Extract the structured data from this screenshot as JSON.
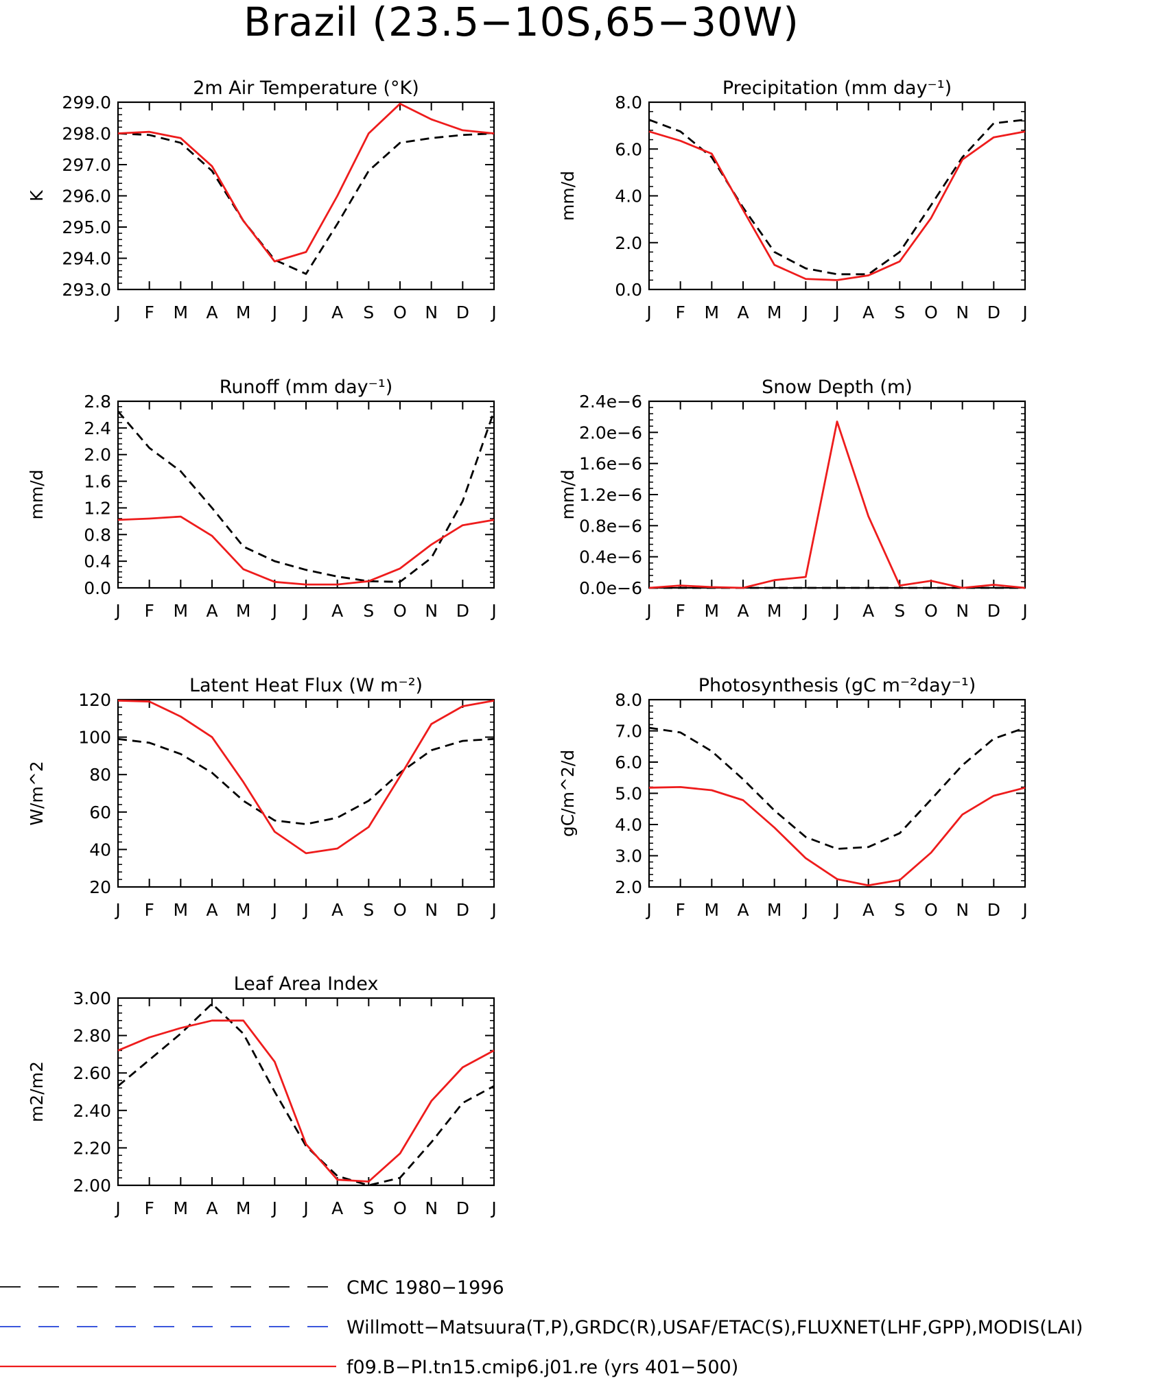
{
  "title": "Brazil (23.5−10S,65−30W)",
  "colors": {
    "obs": "#000000",
    "obs2": "#1f3fd8",
    "model": "#ee1c1c",
    "axis": "#000000"
  },
  "months": [
    "J",
    "F",
    "M",
    "A",
    "M",
    "J",
    "J",
    "A",
    "S",
    "O",
    "N",
    "D",
    "J"
  ],
  "chart_data": [
    {
      "type": "line",
      "title": "2m Air Temperature (°K)",
      "ylabel": "K",
      "ylim": [
        293.0,
        299.0
      ],
      "yticks": [
        293.0,
        294.0,
        295.0,
        296.0,
        297.0,
        298.0,
        299.0
      ],
      "ytick_labels": [
        "293.0",
        "294.0",
        "295.0",
        "296.0",
        "297.0",
        "298.0",
        "299.0"
      ],
      "series": [
        {
          "name": "CMC 1980−1996",
          "values": [
            298.0,
            297.95,
            297.7,
            296.8,
            295.2,
            293.95,
            293.5,
            295.1,
            296.8,
            297.7,
            297.85,
            297.95,
            298.0
          ]
        },
        {
          "name": "f09.B−PI.tn15.cmip6.j01.re (yrs 401−500)",
          "values": [
            298.0,
            298.05,
            297.85,
            296.95,
            295.2,
            293.9,
            294.2,
            296.0,
            298.0,
            298.95,
            298.45,
            298.1,
            298.0
          ]
        }
      ]
    },
    {
      "type": "line",
      "title": "Precipitation (mm day⁻¹)",
      "ylabel": "mm/d",
      "ylim": [
        0.0,
        8.0
      ],
      "yticks": [
        0,
        2,
        4,
        6,
        8
      ],
      "ytick_labels": [
        "0.0",
        "2.0",
        "4.0",
        "6.0",
        "8.0"
      ],
      "series": [
        {
          "name": "CMC 1980−1996",
          "values": [
            7.25,
            6.75,
            5.65,
            3.5,
            1.6,
            0.9,
            0.65,
            0.65,
            1.6,
            3.6,
            5.65,
            7.1,
            7.25
          ]
        },
        {
          "name": "f09.B−PI.tn15.cmip6.j01.re (yrs 401−500)",
          "values": [
            6.75,
            6.35,
            5.8,
            3.4,
            1.05,
            0.45,
            0.4,
            0.6,
            1.2,
            3.05,
            5.55,
            6.5,
            6.75
          ]
        }
      ]
    },
    {
      "type": "line",
      "title": "Runoff (mm day⁻¹)",
      "ylabel": "mm/d",
      "ylim": [
        0.0,
        2.8
      ],
      "yticks": [
        0,
        0.4,
        0.8,
        1.2,
        1.6,
        2.0,
        2.4,
        2.8
      ],
      "ytick_labels": [
        "0.0",
        "0.4",
        "0.8",
        "1.2",
        "1.6",
        "2.0",
        "2.4",
        "2.8"
      ],
      "series": [
        {
          "name": "CMC 1980−1996",
          "values": [
            2.65,
            2.1,
            1.75,
            1.2,
            0.62,
            0.4,
            0.27,
            0.17,
            0.1,
            0.09,
            0.45,
            1.3,
            2.65
          ]
        },
        {
          "name": "f09.B−PI.tn15.cmip6.j01.re (yrs 401−500)",
          "values": [
            1.02,
            1.04,
            1.07,
            0.78,
            0.28,
            0.09,
            0.05,
            0.05,
            0.1,
            0.29,
            0.65,
            0.94,
            1.02
          ]
        }
      ]
    },
    {
      "type": "line",
      "title": "Snow Depth (m)",
      "ylabel": "mm/d",
      "ylim": [
        0.0,
        2.4
      ],
      "yticks": [
        0,
        0.4,
        0.8,
        1.2,
        1.6,
        2.0,
        2.4
      ],
      "ytick_labels": [
        "0.0e−6",
        "0.4e−6",
        "0.8e−6",
        "1.2e−6",
        "1.6e−6",
        "2.0e−6",
        "2.4e−6"
      ],
      "series": [
        {
          "name": "CMC 1980−1996",
          "values": [
            0,
            0,
            0,
            0,
            0,
            0,
            0,
            0,
            0,
            0,
            0,
            0,
            0
          ]
        },
        {
          "name": "f09.B−PI.tn15.cmip6.j01.re (yrs 401−500)",
          "values": [
            0.0,
            0.03,
            0.01,
            0.0,
            0.1,
            0.14,
            2.14,
            0.92,
            0.03,
            0.09,
            0.0,
            0.04,
            0.0
          ]
        }
      ]
    },
    {
      "type": "line",
      "title": "Latent Heat Flux (W m⁻²)",
      "ylabel": "W/m^2",
      "ylim": [
        20,
        120
      ],
      "yticks": [
        20,
        40,
        60,
        80,
        100,
        120
      ],
      "ytick_labels": [
        "20",
        "40",
        "60",
        "80",
        "100",
        "120"
      ],
      "series": [
        {
          "name": "CMC 1980−1996",
          "values": [
            99,
            97,
            91,
            81,
            66,
            55.5,
            53.5,
            57,
            66,
            81,
            93,
            98,
            99
          ]
        },
        {
          "name": "f09.B−PI.tn15.cmip6.j01.re (yrs 401−500)",
          "values": [
            119.5,
            119,
            111,
            100,
            76,
            49.5,
            38,
            40.5,
            52,
            79,
            107,
            116.5,
            119.5
          ]
        }
      ]
    },
    {
      "type": "line",
      "title": "Photosynthesis (gC m⁻²day⁻¹)",
      "ylabel": "gC/m^2/d",
      "ylim": [
        2.0,
        8.0
      ],
      "yticks": [
        2,
        3,
        4,
        5,
        6,
        7,
        8
      ],
      "ytick_labels": [
        "2.0",
        "3.0",
        "4.0",
        "5.0",
        "6.0",
        "7.0",
        "8.0"
      ],
      "series": [
        {
          "name": "CMC 1980−1996",
          "values": [
            7.1,
            6.95,
            6.35,
            5.45,
            4.45,
            3.6,
            3.22,
            3.28,
            3.72,
            4.8,
            5.9,
            6.75,
            7.1
          ]
        },
        {
          "name": "f09.B−PI.tn15.cmip6.j01.re (yrs 401−500)",
          "values": [
            5.18,
            5.2,
            5.1,
            4.78,
            3.9,
            2.92,
            2.25,
            2.05,
            2.22,
            3.1,
            4.32,
            4.92,
            5.18
          ]
        }
      ]
    },
    {
      "type": "line",
      "title": "Leaf Area Index",
      "ylabel": "m2/m2",
      "ylim": [
        2.0,
        3.0
      ],
      "yticks": [
        2.0,
        2.2,
        2.4,
        2.6,
        2.8,
        3.0
      ],
      "ytick_labels": [
        "2.00",
        "2.20",
        "2.40",
        "2.60",
        "2.80",
        "3.00"
      ],
      "series": [
        {
          "name": "CMC 1980−1996",
          "values": [
            2.53,
            2.67,
            2.81,
            2.97,
            2.81,
            2.5,
            2.21,
            2.05,
            2.0,
            2.04,
            2.23,
            2.44,
            2.53
          ]
        },
        {
          "name": "f09.B−PI.tn15.cmip6.j01.re (yrs 401−500)",
          "values": [
            2.72,
            2.79,
            2.84,
            2.88,
            2.88,
            2.66,
            2.22,
            2.03,
            2.02,
            2.17,
            2.45,
            2.63,
            2.72
          ]
        }
      ]
    }
  ],
  "legend": [
    {
      "label": "CMC 1980−1996",
      "style": "dashed",
      "color": "#000000"
    },
    {
      "label": "Willmott−Matsuura(T,P),GRDC(R),USAF/ETAC(S),FLUXNET(LHF,GPP),MODIS(LAI)",
      "style": "dashed",
      "color": "#1f3fd8"
    },
    {
      "label": "f09.B−PI.tn15.cmip6.j01.re (yrs 401−500)",
      "style": "solid",
      "color": "#ee1c1c"
    }
  ]
}
